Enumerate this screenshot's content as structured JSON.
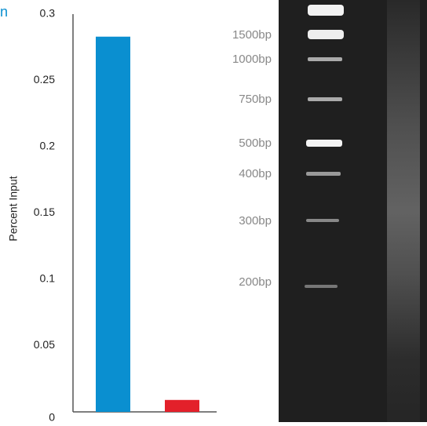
{
  "chart_data": {
    "type": "bar",
    "title": "n",
    "y_label": "Percent Input",
    "categories": [
      null,
      null
    ],
    "series": [
      {
        "name": null,
        "colors": [
          "#0a8fd0",
          "#e3202a"
        ],
        "values": [
          0.283,
          0.009
        ]
      }
    ],
    "ylim": [
      0,
      0.3
    ],
    "yticks": [
      0,
      0.05,
      0.1,
      0.15,
      0.2,
      0.25,
      0.3
    ],
    "grid": false
  },
  "gel": {
    "ladder_labels": [
      "1500bp",
      "1000bp",
      "750bp",
      "500bp",
      "400bp",
      "300bp",
      "200bp"
    ]
  }
}
